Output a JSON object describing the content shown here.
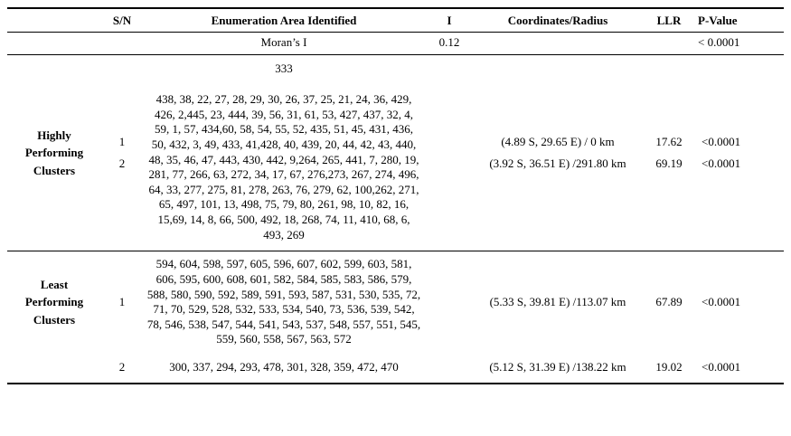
{
  "headers": {
    "sn": "S/N",
    "ea": "Enumeration Area Identified",
    "i": "I",
    "coords": "Coordinates/Radius",
    "llr": "LLR",
    "p": "P-Value"
  },
  "moran": {
    "label": "Moran’s I",
    "i": "0.12",
    "p": "< 0.0001"
  },
  "highly": {
    "group": "Highly Performing Clusters",
    "rows": [
      {
        "sn": "1",
        "ea": "333",
        "coords": "(4.89 S, 29.65 E) / 0 km",
        "llr": "17.62",
        "p": "<0.0001"
      },
      {
        "sn": "2",
        "ea": "438, 38, 22, 27, 28, 29, 30, 26, 37, 25, 21, 24, 36, 429, 426, 2,445, 23, 444, 39, 56, 31, 61, 53, 427, 437, 32, 4, 59, 1, 57, 434,60, 58, 54, 55, 52, 435, 51, 45, 431, 436, 50, 432, 3, 49, 433, 41,428, 40, 439, 20, 44, 42, 43, 440, 48, 35, 46, 47, 443, 430, 442, 9,264, 265, 441, 7, 280, 19, 281, 77, 266, 63, 272, 34, 17, 67, 276,273, 267, 274, 496, 64, 33, 277, 275, 81, 278, 263, 76, 279, 62, 100,262, 271, 65, 497, 101, 13, 498, 75, 79, 80, 261, 98, 10, 82, 16, 15,69, 14, 8, 66, 500, 492, 18, 268, 74, 11, 410, 68, 6, 493, 269",
        "coords": "(3.92 S, 36.51 E) /291.80 km",
        "llr": "69.19",
        "p": "<0.0001"
      }
    ]
  },
  "least": {
    "group": "Least Performing Clusters",
    "rows": [
      {
        "sn": "1",
        "ea": "594, 604, 598, 597, 605, 596, 607, 602, 599, 603, 581, 606, 595, 600, 608, 601, 582, 584, 585, 583, 586, 579, 588, 580, 590, 592, 589, 591, 593, 587, 531, 530, 535, 72, 71, 70, 529, 528, 532, 533, 534, 540, 73, 536, 539, 542, 78, 546, 538, 547, 544, 541, 543, 537, 548, 557, 551, 545, 559, 560, 558, 567, 563, 572",
        "coords": "(5.33 S, 39.81 E) /113.07 km",
        "llr": "67.89",
        "p": "<0.0001"
      },
      {
        "sn": "2",
        "ea": "300, 337, 294, 293, 478, 301, 328, 359, 472, 470",
        "coords": "(5.12 S, 31.39 E) /138.22 km",
        "llr": "19.02",
        "p": "<0.0001"
      }
    ]
  }
}
